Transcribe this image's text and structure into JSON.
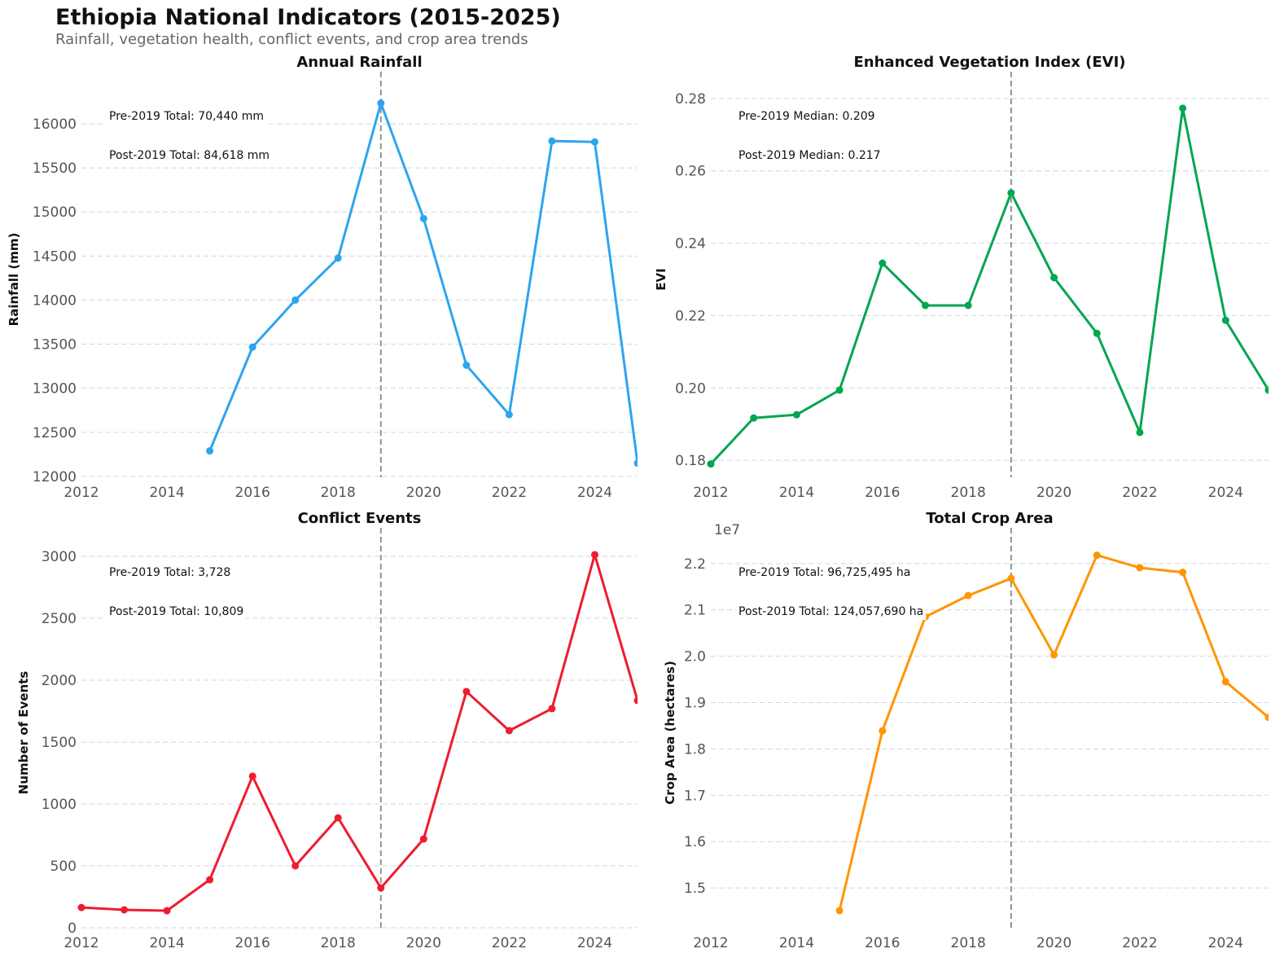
{
  "title": "Ethiopia National Indicators (2015-2025)",
  "subtitle": "Rainfall, vegetation health, conflict events, and crop area trends",
  "chart_data": [
    {
      "type": "line",
      "title": "Annual Rainfall",
      "xlabel": "",
      "ylabel": "Rainfall (mm)",
      "color": "#2ea4ef",
      "x": [
        2015,
        2016,
        2017,
        2018,
        2019,
        2020,
        2021,
        2022,
        2023,
        2024,
        2025
      ],
      "y": [
        12290,
        13467,
        14000,
        14477,
        16234,
        14925,
        13262,
        12701,
        15804,
        15794,
        12150
      ],
      "xlim": [
        2012,
        2025
      ],
      "ylim": [
        11990,
        16480
      ],
      "xticks": [
        2012,
        2014,
        2016,
        2018,
        2020,
        2022,
        2024
      ],
      "yticks": [
        12000,
        12500,
        13000,
        13500,
        14000,
        14500,
        15000,
        15500,
        16000
      ],
      "ytick_labels": [
        "12000",
        "12500",
        "13000",
        "13500",
        "14000",
        "14500",
        "15000",
        "15500",
        "16000"
      ],
      "vline": 2019,
      "annotations": [
        "Pre-2019 Total: 70,440 mm",
        "Post-2019 Total: 84,618 mm"
      ],
      "grid": "y-dashed"
    },
    {
      "type": "line",
      "title": "Enhanced Vegetation Index (EVI)",
      "xlabel": "",
      "ylabel": "EVI",
      "color": "#00a651",
      "x": [
        2012,
        2013,
        2014,
        2015,
        2016,
        2017,
        2018,
        2019,
        2020,
        2021,
        2022,
        2023,
        2024,
        2025
      ],
      "y": [
        0.179,
        0.1917,
        0.1926,
        0.1994,
        0.2345,
        0.2228,
        0.2228,
        0.2539,
        0.2305,
        0.2151,
        0.1877,
        0.2773,
        0.2187,
        0.1994
      ],
      "xlim": [
        2012,
        2025
      ],
      "ylim": [
        0.1753,
        0.2847
      ],
      "xticks": [
        2012,
        2014,
        2016,
        2018,
        2020,
        2022,
        2024
      ],
      "yticks": [
        0.18,
        0.2,
        0.22,
        0.24,
        0.26,
        0.28
      ],
      "ytick_labels": [
        "0.18",
        "0.20",
        "0.22",
        "0.24",
        "0.26",
        "0.28"
      ],
      "vline": 2019,
      "annotations": [
        "Pre-2019 Median: 0.209",
        "Post-2019 Median: 0.217"
      ],
      "grid": "y-dashed"
    },
    {
      "type": "line",
      "title": "Conflict Events",
      "xlabel": "",
      "ylabel": "Number of Events",
      "color": "#ee1c30",
      "x": [
        2012,
        2013,
        2014,
        2015,
        2016,
        2017,
        2018,
        2019,
        2020,
        2021,
        2022,
        2023,
        2024,
        2025
      ],
      "y": [
        164,
        145,
        138,
        388,
        1224,
        500,
        888,
        322,
        717,
        1908,
        1592,
        1770,
        3013,
        1836
      ],
      "xlim": [
        2012,
        2025
      ],
      "ylim": [
        0,
        3151
      ],
      "xticks": [
        2012,
        2014,
        2016,
        2018,
        2020,
        2022,
        2024
      ],
      "yticks": [
        0,
        500,
        1000,
        1500,
        2000,
        2500,
        3000
      ],
      "ytick_labels": [
        "0",
        "500",
        "1000",
        "1500",
        "2000",
        "2500",
        "3000"
      ],
      "vline": 2019,
      "annotations": [
        "Pre-2019 Total: 3,728",
        "Post-2019 Total: 10,809"
      ],
      "grid": "y-dashed"
    },
    {
      "type": "line",
      "title": "Total Crop Area",
      "xlabel": "",
      "ylabel": "Crop Area (hectares)",
      "y_offset_label": "1e7",
      "color": "#ff9500",
      "x": [
        2015,
        2016,
        2017,
        2018,
        2019,
        2020,
        2021,
        2022,
        2023,
        2024,
        2025
      ],
      "y": [
        14510000,
        18390000,
        20850000,
        21310000,
        21680000,
        20030000,
        22180000,
        21910000,
        21810000,
        19450000,
        18680000
      ],
      "xlim": [
        2012,
        2025
      ],
      "ylim": [
        14140000,
        22560000
      ],
      "xticks": [
        2012,
        2014,
        2016,
        2018,
        2020,
        2022,
        2024
      ],
      "yticks": [
        15000000,
        16000000,
        17000000,
        18000000,
        19000000,
        20000000,
        21000000,
        22000000
      ],
      "ytick_labels": [
        "1.5",
        "1.6",
        "1.7",
        "1.8",
        "1.9",
        "2.0",
        "2.1",
        "2.2"
      ],
      "vline": 2019,
      "annotations": [
        "Pre-2019 Total: 96,725,495 ha",
        "Post-2019 Total: 124,057,690 ha"
      ],
      "grid": "y-dashed"
    }
  ]
}
